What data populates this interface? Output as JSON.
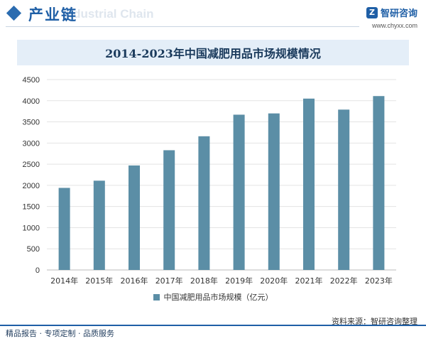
{
  "header": {
    "section_title": "产业链",
    "watermark": "Industrial Chain",
    "brand_name": "智研咨询",
    "brand_url": "www.chyxx.com"
  },
  "colors": {
    "bar": "#5b8ea6",
    "accent": "#1f5fa6",
    "title_band": "#e4eef8"
  },
  "chart_data": {
    "type": "bar",
    "title": "2014-2023年中国减肥用品市场规模情况",
    "categories": [
      "2014年",
      "2015年",
      "2016年",
      "2017年",
      "2018年",
      "2019年",
      "2020年",
      "2021年",
      "2022年",
      "2023年"
    ],
    "series": [
      {
        "name": "中国减肥用品市场规模（亿元）",
        "values": [
          1940,
          2110,
          2470,
          2830,
          3160,
          3670,
          3700,
          4050,
          3790,
          4110
        ]
      }
    ],
    "ylim": [
      0,
      4500
    ],
    "yticks": [
      0,
      500,
      1000,
      1500,
      2000,
      2500,
      3000,
      3500,
      4000,
      4500
    ],
    "grid": true,
    "legend_position": "bottom"
  },
  "footer": {
    "source": "资料来源：智研咨询整理",
    "tagline": "精品报告 · 专项定制 · 品质服务"
  }
}
